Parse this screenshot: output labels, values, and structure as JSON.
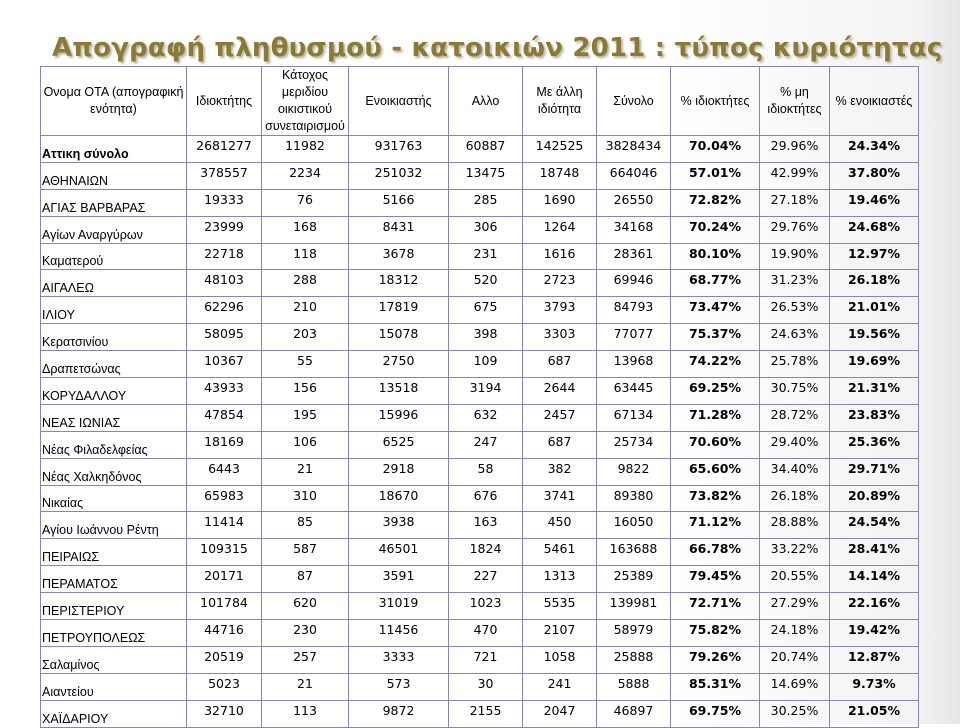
{
  "title": "Απογραφή πληθυσμού - κατοικιών 2011 : τύπος κυριότητας",
  "headers": [
    "Ονομα ΟΤΑ (απογραφική ενότητα)",
    "Ιδιοκτήτης",
    "Κάτοχος μεριδίου οικιστικού συνεταιρισμού",
    "Ενοικιαστής",
    "Αλλο",
    "Με άλλη ιδιότητα",
    "Σύνολο",
    "% ιδιοκτήτες",
    "% μη ιδιοκτήτες",
    "% ενοικιαστές"
  ],
  "rows": [
    [
      "Αττικη σύνολο",
      "2681277",
      "11982",
      "931763",
      "60887",
      "142525",
      "3828434",
      "70.04%",
      "29.96%",
      "24.34%"
    ],
    [
      "ΑΘΗΝΑΙΩΝ",
      "378557",
      "2234",
      "251032",
      "13475",
      "18748",
      "664046",
      "57.01%",
      "42.99%",
      "37.80%"
    ],
    [
      "ΑΓΙΑΣ ΒΑΡΒΑΡΑΣ",
      "19333",
      "76",
      "5166",
      "285",
      "1690",
      "26550",
      "72.82%",
      "27.18%",
      "19.46%"
    ],
    [
      "Αγίων Αναργύρων",
      "23999",
      "168",
      "8431",
      "306",
      "1264",
      "34168",
      "70.24%",
      "29.76%",
      "24.68%"
    ],
    [
      "Καματερού",
      "22718",
      "118",
      "3678",
      "231",
      "1616",
      "28361",
      "80.10%",
      "19.90%",
      "12.97%"
    ],
    [
      "ΑΙΓΑΛΕΩ",
      "48103",
      "288",
      "18312",
      "520",
      "2723",
      "69946",
      "68.77%",
      "31.23%",
      "26.18%"
    ],
    [
      "ΙΛΙΟΥ",
      "62296",
      "210",
      "17819",
      "675",
      "3793",
      "84793",
      "73.47%",
      "26.53%",
      "21.01%"
    ],
    [
      "Κερατσινίου",
      "58095",
      "203",
      "15078",
      "398",
      "3303",
      "77077",
      "75.37%",
      "24.63%",
      "19.56%"
    ],
    [
      "Δραπετσώνας",
      "10367",
      "55",
      "2750",
      "109",
      "687",
      "13968",
      "74.22%",
      "25.78%",
      "19.69%"
    ],
    [
      "ΚΟΡΥΔΑΛΛΟΥ",
      "43933",
      "156",
      "13518",
      "3194",
      "2644",
      "63445",
      "69.25%",
      "30.75%",
      "21.31%"
    ],
    [
      "ΝΕΑΣ ΙΩΝΙΑΣ",
      "47854",
      "195",
      "15996",
      "632",
      "2457",
      "67134",
      "71.28%",
      "28.72%",
      "23.83%"
    ],
    [
      "Νέας Φιλαδελφείας",
      "18169",
      "106",
      "6525",
      "247",
      "687",
      "25734",
      "70.60%",
      "29.40%",
      "25.36%"
    ],
    [
      "Νέας Χαλκηδόνος",
      "6443",
      "21",
      "2918",
      "58",
      "382",
      "9822",
      "65.60%",
      "34.40%",
      "29.71%"
    ],
    [
      "Νικαίας",
      "65983",
      "310",
      "18670",
      "676",
      "3741",
      "89380",
      "73.82%",
      "26.18%",
      "20.89%"
    ],
    [
      "Αγίου Ιωάννου Ρέντη",
      "11414",
      "85",
      "3938",
      "163",
      "450",
      "16050",
      "71.12%",
      "28.88%",
      "24.54%"
    ],
    [
      "ΠΕΙΡΑΙΩΣ",
      "109315",
      "587",
      "46501",
      "1824",
      "5461",
      "163688",
      "66.78%",
      "33.22%",
      "28.41%"
    ],
    [
      "ΠΕΡΑΜΑΤΟΣ",
      "20171",
      "87",
      "3591",
      "227",
      "1313",
      "25389",
      "79.45%",
      "20.55%",
      "14.14%"
    ],
    [
      "ΠΕΡΙΣΤΕΡΙΟΥ",
      "101784",
      "620",
      "31019",
      "1023",
      "5535",
      "139981",
      "72.71%",
      "27.29%",
      "22.16%"
    ],
    [
      "ΠΕΤΡΟΥΠΟΛΕΩΣ",
      "44716",
      "230",
      "11456",
      "470",
      "2107",
      "58979",
      "75.82%",
      "24.18%",
      "19.42%"
    ],
    [
      "Σαλαμίνος",
      "20519",
      "257",
      "3333",
      "721",
      "1058",
      "25888",
      "79.26%",
      "20.74%",
      "12.87%"
    ],
    [
      "Αιαντείου",
      "5023",
      "21",
      "573",
      "30",
      "241",
      "5888",
      "85.31%",
      "14.69%",
      "9.73%"
    ],
    [
      "ΧΑΪΔΑΡΙΟΥ",
      "32710",
      "113",
      "9872",
      "2155",
      "2047",
      "46897",
      "69.75%",
      "30.25%",
      "21.05%"
    ]
  ],
  "colors": {
    "title": "#8a7a38",
    "grid": "#8c83b2"
  }
}
